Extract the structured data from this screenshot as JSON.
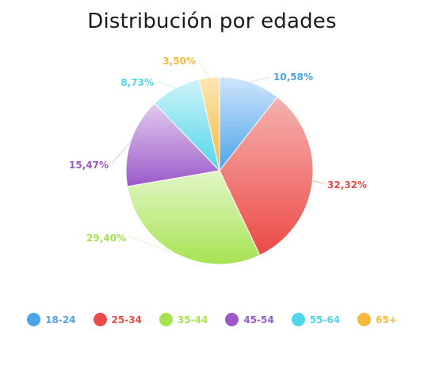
{
  "chart_data": {
    "type": "pie",
    "title": "Distribución por edades",
    "legend_position": "bottom",
    "slices": [
      {
        "label": "18-24",
        "value": 10.58,
        "value_label": "10,58%",
        "color": "#4da3ea",
        "light": "#cfe6fb"
      },
      {
        "label": "25-34",
        "value": 32.32,
        "value_label": "32,32%",
        "color": "#ec4a46",
        "light": "#f5b2b0"
      },
      {
        "label": "35-44",
        "value": 29.4,
        "value_label": "29,40%",
        "color": "#a6e353",
        "light": "#e2f6c6"
      },
      {
        "label": "45-54",
        "value": 15.47,
        "value_label": "15,47%",
        "color": "#9b59c8",
        "light": "#e1ccf0"
      },
      {
        "label": "55-64",
        "value": 8.73,
        "value_label": "8,73%",
        "color": "#4fd6ea",
        "light": "#cff3f8"
      },
      {
        "label": "65+",
        "value": 3.5,
        "value_label": "3,50%",
        "color": "#f6b93b",
        "light": "#fde7b5"
      }
    ]
  }
}
